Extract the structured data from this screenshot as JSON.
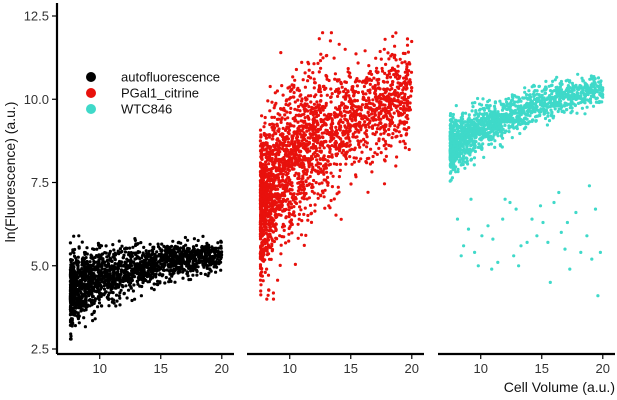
{
  "chart_data": {
    "type": "scatter",
    "xlabel": "Cell Volume (a.u.)",
    "ylabel": "ln(Fluorescence) (a.u.)",
    "ylim": [
      2.5,
      12.5
    ],
    "yticks": [
      2.5,
      5.0,
      7.5,
      10.0,
      12.5
    ],
    "ytick_labels": [
      "2.5",
      "5.0",
      "7.5",
      "10.0",
      "12.5"
    ],
    "grid": false,
    "legend": {
      "placement": "top-left",
      "entries": [
        {
          "name": "autofluorescence",
          "color": "#000000"
        },
        {
          "name": "PGal1_citrine",
          "color": "#e8110c"
        },
        {
          "name": "WTC846",
          "color": "#3fd9c9"
        }
      ]
    },
    "panels": [
      {
        "series": "autofluorescence",
        "color": "#000000",
        "xlim": [
          6.5,
          21
        ],
        "xticks": [
          10,
          15,
          20
        ],
        "xtick_labels": [
          "10",
          "15",
          "20"
        ],
        "x_range": [
          7.6,
          20.0
        ],
        "y_trend": [
          [
            7.6,
            4.2
          ],
          [
            10.0,
            4.6
          ],
          [
            13.0,
            4.95
          ],
          [
            16.0,
            5.15
          ],
          [
            20.0,
            5.3
          ]
        ],
        "y_spread": [
          [
            7.6,
            1.2
          ],
          [
            10.0,
            1.0
          ],
          [
            14.0,
            0.6
          ],
          [
            20.0,
            0.45
          ]
        ],
        "y_min": 2.8,
        "y_max": 5.9,
        "n_points": 1800
      },
      {
        "series": "PGal1_citrine",
        "color": "#e8110c",
        "xlim": [
          6.5,
          21
        ],
        "xticks": [
          10,
          15,
          20
        ],
        "xtick_labels": [
          "10",
          "15",
          "20"
        ],
        "x_range": [
          7.6,
          20.0
        ],
        "y_trend": [
          [
            7.6,
            6.8
          ],
          [
            10.0,
            8.1
          ],
          [
            13.0,
            9.0
          ],
          [
            16.0,
            9.6
          ],
          [
            20.0,
            10.2
          ]
        ],
        "y_spread": [
          [
            7.6,
            2.6
          ],
          [
            10.0,
            2.4
          ],
          [
            14.0,
            1.9
          ],
          [
            20.0,
            1.6
          ]
        ],
        "y_min": 4.0,
        "y_max": 12.0,
        "n_points": 2400
      },
      {
        "series": "WTC846",
        "color": "#3fd9c9",
        "xlim": [
          6.5,
          21
        ],
        "xticks": [
          10,
          15,
          20
        ],
        "xtick_labels": [
          "10",
          "15",
          "20"
        ],
        "x_range": [
          7.5,
          20.0
        ],
        "y_trend": [
          [
            7.5,
            8.6
          ],
          [
            10.0,
            9.1
          ],
          [
            13.0,
            9.6
          ],
          [
            16.0,
            10.0
          ],
          [
            20.0,
            10.3
          ]
        ],
        "y_spread": [
          [
            7.5,
            0.9
          ],
          [
            10.0,
            0.75
          ],
          [
            14.0,
            0.55
          ],
          [
            20.0,
            0.45
          ]
        ],
        "y_min": 7.4,
        "y_max": 10.9,
        "n_points": 1500,
        "outliers": [
          [
            8.1,
            6.4
          ],
          [
            8.6,
            5.6
          ],
          [
            9.0,
            6.1
          ],
          [
            9.5,
            5.4
          ],
          [
            10.1,
            5.9
          ],
          [
            10.6,
            6.2
          ],
          [
            11.0,
            5.8
          ],
          [
            11.4,
            5.1
          ],
          [
            12.0,
            7.0
          ],
          [
            12.4,
            6.9
          ],
          [
            12.9,
            6.7
          ],
          [
            13.3,
            5.6
          ],
          [
            13.8,
            5.7
          ],
          [
            14.2,
            6.4
          ],
          [
            14.6,
            5.9
          ],
          [
            15.1,
            6.3
          ],
          [
            15.5,
            5.7
          ],
          [
            16.0,
            6.9
          ],
          [
            16.4,
            7.2
          ],
          [
            16.9,
            5.5
          ],
          [
            17.3,
            4.9
          ],
          [
            17.8,
            6.6
          ],
          [
            18.2,
            5.4
          ],
          [
            18.7,
            5.9
          ],
          [
            19.1,
            5.2
          ],
          [
            19.6,
            4.1
          ],
          [
            19.8,
            5.4
          ],
          [
            9.2,
            7.0
          ],
          [
            10.9,
            4.9
          ],
          [
            12.7,
            5.3
          ],
          [
            14.9,
            6.8
          ],
          [
            16.6,
            6.0
          ],
          [
            18.9,
            7.4
          ],
          [
            8.4,
            5.3
          ],
          [
            11.8,
            6.4
          ],
          [
            13.1,
            5.0
          ],
          [
            17.1,
            6.3
          ],
          [
            19.4,
            6.7
          ],
          [
            15.7,
            4.5
          ],
          [
            9.8,
            5.0
          ]
        ]
      }
    ]
  }
}
